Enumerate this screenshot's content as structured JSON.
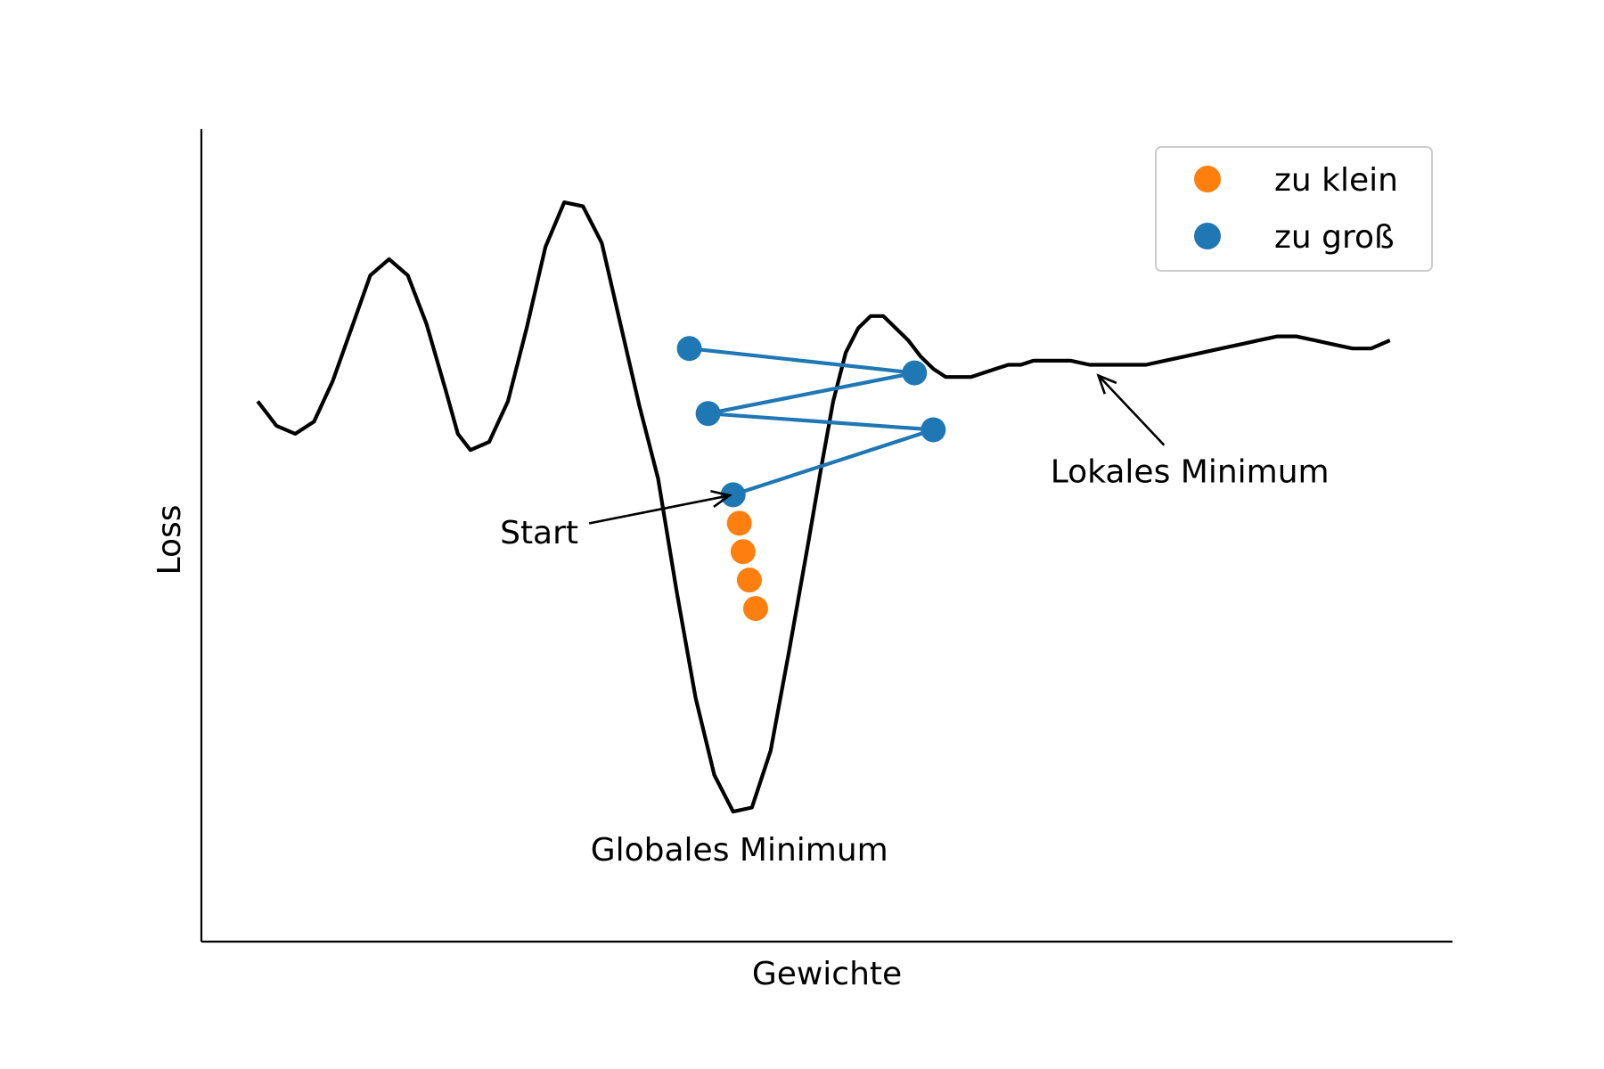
{
  "chart_data": {
    "type": "line",
    "title": "",
    "xlabel": "Gewichte",
    "ylabel": "Loss",
    "xlim": [
      0,
      10
    ],
    "ylim": [
      0,
      10
    ],
    "grid": false,
    "xticks": [],
    "yticks": [],
    "legend": {
      "position": "top-right",
      "entries": [
        {
          "label": "zu klein",
          "color": "#ff7f0e",
          "marker": "circle"
        },
        {
          "label": "zu groß",
          "color": "#1f77b4",
          "marker": "circle"
        }
      ]
    },
    "series": [
      {
        "role": "loss-curve",
        "color": "#000000",
        "x": [
          0.45,
          0.6,
          0.75,
          0.9,
          1.05,
          1.2,
          1.35,
          1.5,
          1.65,
          1.8,
          1.95,
          2.05,
          2.15,
          2.3,
          2.45,
          2.6,
          2.75,
          2.9,
          3.05,
          3.2,
          3.35,
          3.5,
          3.65,
          3.8,
          3.95,
          4.1,
          4.25,
          4.4,
          4.55,
          4.7,
          4.85,
          4.95,
          5.05,
          5.15,
          5.25,
          5.35,
          5.45,
          5.55,
          5.65,
          5.75,
          5.85,
          5.95,
          6.05,
          6.15,
          6.25,
          6.35,
          6.45,
          6.55,
          6.65,
          6.8,
          6.95,
          7.1,
          7.25,
          7.4,
          7.55,
          7.7,
          7.85,
          8.0,
          8.15,
          8.3,
          8.45,
          8.6,
          8.75,
          8.9,
          9.05,
          9.2,
          9.35,
          9.5
        ],
        "y": [
          6.65,
          6.35,
          6.25,
          6.4,
          6.9,
          7.55,
          8.2,
          8.4,
          8.2,
          7.6,
          6.8,
          6.25,
          6.05,
          6.15,
          6.65,
          7.55,
          8.55,
          9.1,
          9.05,
          8.6,
          7.6,
          6.6,
          5.7,
          4.3,
          3.0,
          2.05,
          1.6,
          1.65,
          2.35,
          3.6,
          4.9,
          5.8,
          6.65,
          7.25,
          7.55,
          7.7,
          7.7,
          7.55,
          7.4,
          7.2,
          7.05,
          6.95,
          6.95,
          6.95,
          7.0,
          7.05,
          7.1,
          7.1,
          7.15,
          7.15,
          7.15,
          7.1,
          7.1,
          7.1,
          7.1,
          7.15,
          7.2,
          7.25,
          7.3,
          7.35,
          7.4,
          7.45,
          7.45,
          7.4,
          7.35,
          7.3,
          7.3,
          7.4
        ]
      },
      {
        "name": "zu groß",
        "role": "large-steps",
        "color": "#1f77b4",
        "x": [
          4.25,
          5.85,
          4.05,
          5.7,
          3.9
        ],
        "y": [
          5.5,
          6.3,
          6.5,
          7.0,
          7.3
        ]
      },
      {
        "name": "zu klein",
        "role": "small-steps",
        "color": "#ff7f0e",
        "x": [
          4.3,
          4.33,
          4.38,
          4.43
        ],
        "y": [
          5.15,
          4.8,
          4.45,
          4.1
        ]
      }
    ],
    "annotations": [
      {
        "text": "Start",
        "x": 2.7,
        "y": 4.9,
        "arrow_to": [
          4.25,
          5.5
        ]
      },
      {
        "text": "Globales Minimum",
        "x": 4.3,
        "y": 1.0
      },
      {
        "text": "Lokales Minimum",
        "x": 7.9,
        "y": 5.65,
        "arrow_to": [
          7.15,
          7.0
        ]
      }
    ]
  }
}
